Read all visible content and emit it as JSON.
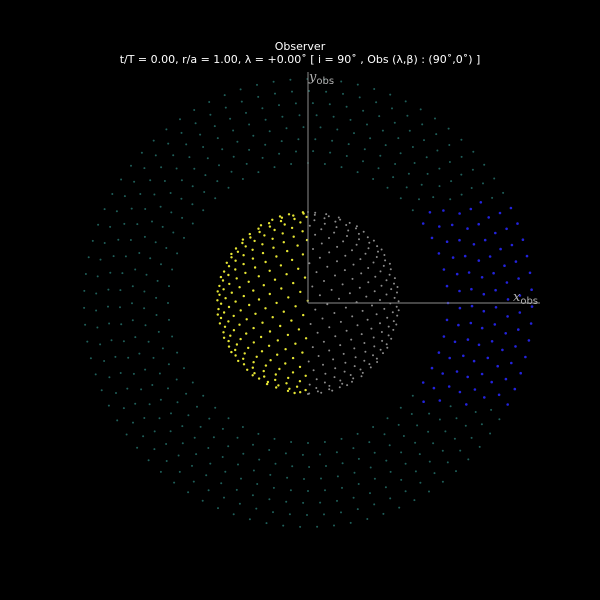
{
  "header": {
    "title": "Observer",
    "subtitle": "t/T = 0.00, r/a = 1.00, λ = +0.00˚ [ i = 90˚ , Obs (λ,β) : (90˚,0˚) ]"
  },
  "axes": {
    "x_label": "x",
    "x_subscript": "obs",
    "y_label": "y",
    "y_subscript": "obs",
    "color": "#8c8c8c"
  },
  "scene": {
    "background": "#000000",
    "ring_color": "#1f5f5a",
    "ring_far_color": "#2323dd",
    "star_dayside_color": "#e6e633",
    "star_nightside_color": "#8c8c8c"
  }
}
